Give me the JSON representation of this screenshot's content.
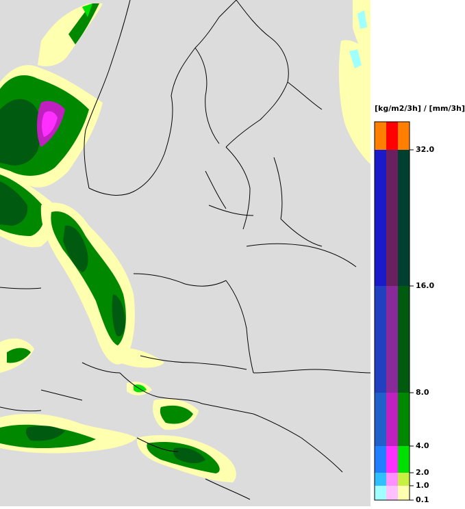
{
  "legend": {
    "unit": "[kg/m2/3h] / [mm/3h]",
    "ticks": [
      "32.0",
      "16.0",
      "8.0",
      "4.0",
      "2.0",
      "1.0",
      "0.1"
    ],
    "rows": [
      {
        "from": "32.0",
        "colors": [
          "#ff8000",
          "#ff0000",
          "#ff8000"
        ]
      },
      {
        "from": "16.0",
        "colors": [
          "#1a1ac8",
          "#6a2060",
          "#004030"
        ]
      },
      {
        "from": "8.0",
        "colors": [
          "#2040c0",
          "#8a2a9a",
          "#005a10"
        ]
      },
      {
        "from": "4.0",
        "colors": [
          "#2060c8",
          "#c020c0",
          "#008800"
        ]
      },
      {
        "from": "2.0",
        "colors": [
          "#2080ff",
          "#ff30ff",
          "#00e000"
        ]
      },
      {
        "from": "1.0",
        "colors": [
          "#30c0ff",
          "#ff90ff",
          "#c8f040"
        ]
      },
      {
        "from": "0.1",
        "colors": [
          "#a0ffff",
          "#ffc0ff",
          "#ffffb0"
        ]
      }
    ]
  }
}
